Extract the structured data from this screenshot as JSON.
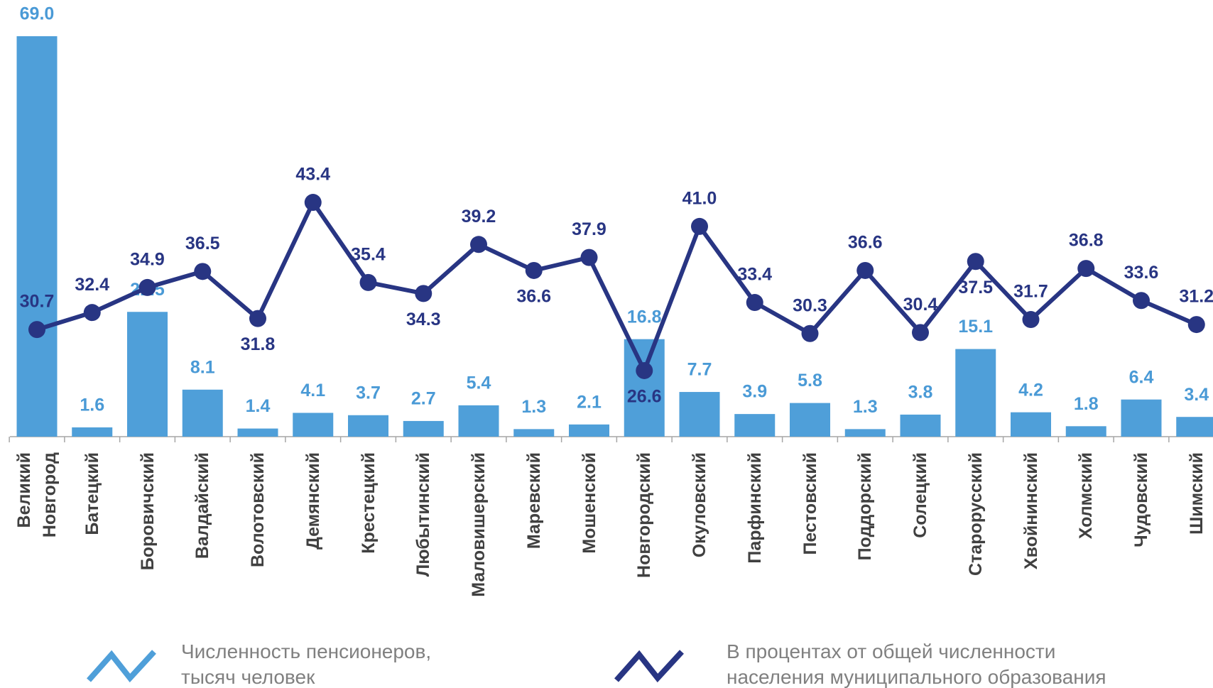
{
  "chart_data": {
    "type": "bar-line",
    "categories": [
      "Великий\nНовгород",
      "Батецкий",
      "Боровичский",
      "Валдайский",
      "Волотовский",
      "Демянский",
      "Крестецкий",
      "Любытинский",
      "Маловишерский",
      "Маревский",
      "Мошенской",
      "Новгородский",
      "Окуловский",
      "Парфинский",
      "Пестовский",
      "Поддорский",
      "Солецкий",
      "Старорусский",
      "Хвойнинский",
      "Холмский",
      "Чудовский",
      "Шимский"
    ],
    "series": [
      {
        "name": "Численность пенсионеров,\nтысяч человек",
        "type": "bar",
        "color": "#4f9fd9",
        "label_color": "#4a9ad6",
        "values": [
          69.0,
          1.6,
          21.5,
          8.1,
          1.4,
          4.1,
          3.7,
          2.7,
          5.4,
          1.3,
          2.1,
          16.8,
          7.7,
          3.9,
          5.8,
          1.3,
          3.8,
          15.1,
          4.2,
          1.8,
          6.4,
          3.4
        ],
        "value_labels": [
          "69.0",
          "1.6",
          "21.5",
          "8.1",
          "1.4",
          "4.1",
          "3.7",
          "2.7",
          "5.4",
          "1.3",
          "2.1",
          "16.8",
          "7.7",
          "3.9",
          "5.8",
          "1.3",
          "3.8",
          "15.1",
          "4.2",
          "1.8",
          "6.4",
          "3.4"
        ]
      },
      {
        "name": "В процентах от общей численности\nнаселения муниципального образования",
        "type": "line",
        "axis": "y2",
        "color": "#283583",
        "label_color": "#283583",
        "values": [
          30.7,
          32.4,
          34.9,
          36.5,
          31.8,
          43.4,
          35.4,
          34.3,
          39.2,
          36.6,
          37.9,
          26.6,
          41.0,
          33.4,
          30.3,
          36.6,
          30.4,
          37.5,
          31.7,
          36.8,
          33.6,
          31.2
        ],
        "value_labels": [
          "30.7",
          "32.4",
          "34.9",
          "36.5",
          "31.8",
          "43.4",
          "35.4",
          "34.3",
          "39.2",
          "36.6",
          "37.9",
          "26.6",
          "41.0",
          "33.4",
          "30.3",
          "36.6",
          "30.4",
          "37.5",
          "31.7",
          "36.8",
          "33.6",
          "31.2"
        ]
      }
    ],
    "ylim": [
      0,
      69
    ],
    "y2lim": [
      20,
      60
    ]
  }
}
